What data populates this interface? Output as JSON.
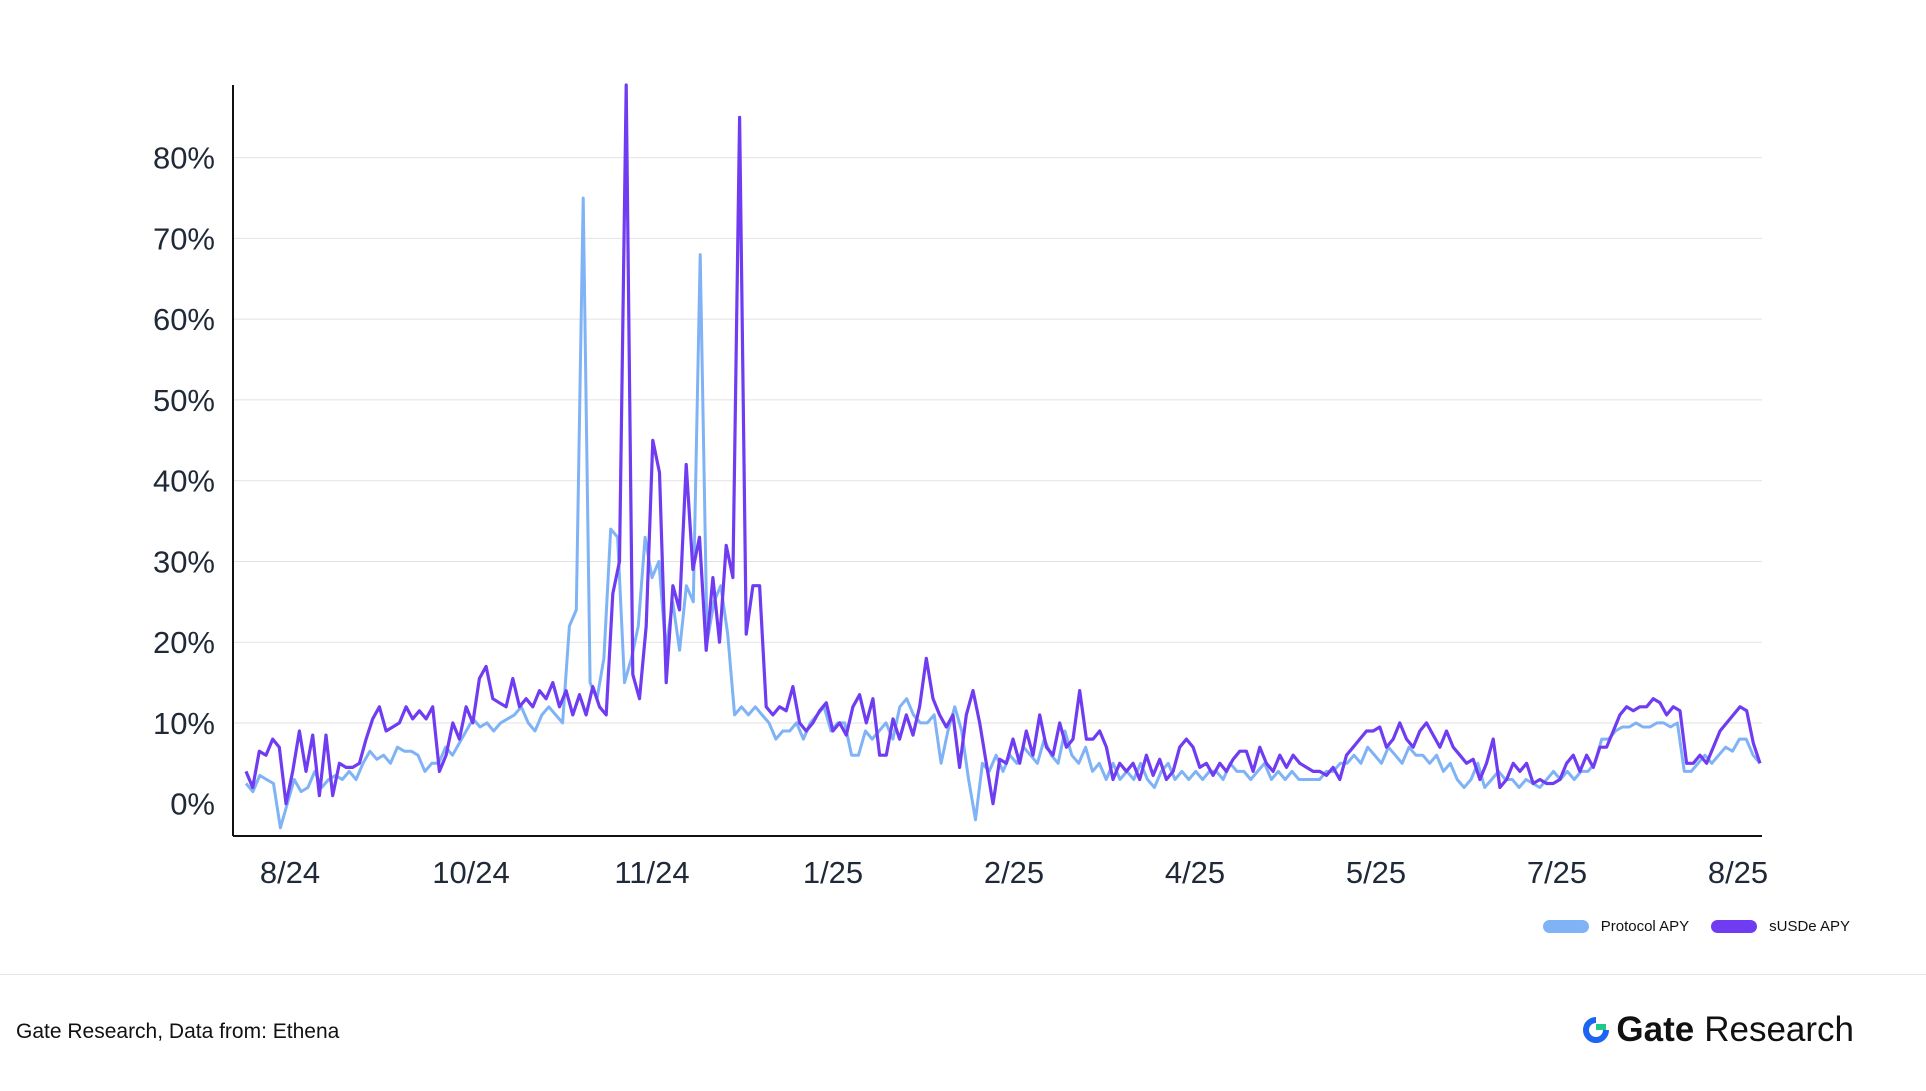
{
  "chart_data": {
    "type": "line",
    "x_tick_labels": [
      "8/24",
      "10/24",
      "11/24",
      "1/25",
      "2/25",
      "4/25",
      "5/25",
      "7/25",
      "8/25"
    ],
    "y_tick_labels": [
      "0%",
      "10%",
      "20%",
      "30%",
      "40%",
      "50%",
      "60%",
      "70%",
      "80%"
    ],
    "ylim": [
      -4,
      89
    ],
    "grid": "horizontal",
    "legend_position": "bottom-right",
    "series": [
      {
        "name": "Protocol APY",
        "color": "#7fb3f5",
        "values": [
          2.5,
          1.5,
          3.5,
          3,
          2.5,
          -3,
          0,
          3,
          1.5,
          2,
          4,
          2,
          3,
          3.5,
          3,
          4,
          3,
          5,
          6.5,
          5.5,
          6,
          5,
          7,
          6.5,
          6.5,
          6,
          4,
          5,
          5,
          7,
          6,
          7.5,
          9,
          10.5,
          9.5,
          10,
          9,
          10,
          10.5,
          11,
          12,
          10,
          9,
          11,
          12,
          11,
          10,
          22,
          24,
          75,
          15,
          13,
          18,
          34,
          33,
          15,
          18,
          22,
          33,
          28,
          30,
          19,
          25,
          19,
          27,
          25,
          68,
          20,
          25,
          27,
          21,
          11,
          12,
          11,
          12,
          11,
          10,
          8,
          9,
          9,
          10,
          8,
          10,
          11,
          12,
          9,
          10,
          10,
          6,
          6,
          9,
          8,
          9,
          10,
          8,
          12,
          13,
          11,
          10,
          10,
          11,
          5,
          9,
          12,
          9,
          3,
          -2,
          5,
          4,
          6,
          4,
          6,
          5,
          7,
          6,
          5,
          8,
          6,
          5,
          9,
          6,
          5,
          7,
          4,
          5,
          3,
          5,
          3,
          4,
          3,
          5,
          3,
          2,
          4,
          5,
          3,
          4,
          3,
          4,
          3,
          4,
          4,
          3,
          5,
          4,
          4,
          3,
          4,
          5,
          3,
          4,
          3,
          4,
          3,
          3,
          3,
          3,
          4,
          4,
          5,
          5,
          6,
          5,
          7,
          6,
          5,
          7,
          6,
          5,
          7,
          6,
          6,
          5,
          6,
          4,
          5,
          3,
          2,
          3,
          5,
          2,
          3,
          4,
          3,
          3,
          2,
          3,
          2.5,
          2,
          3,
          4,
          3,
          4,
          3,
          4,
          4,
          5,
          8,
          8,
          9,
          9.5,
          9.5,
          10,
          9.5,
          9.5,
          10,
          10,
          9.5,
          10,
          4,
          4,
          5,
          6,
          5,
          6,
          7,
          6.5,
          8,
          8,
          6,
          5
        ],
        "label_sequence": []
      },
      {
        "name": "sUSDe APY",
        "color": "#6f3cf2",
        "values": [
          4,
          2,
          6.5,
          6,
          8,
          7,
          0,
          4,
          9,
          4,
          8.5,
          1,
          8.5,
          1,
          5,
          4.5,
          4.5,
          5,
          8,
          10.5,
          12,
          9,
          9.5,
          10,
          12,
          10.5,
          11.5,
          10.5,
          12,
          4,
          6,
          10,
          8,
          12,
          10,
          15.5,
          17,
          13,
          12.5,
          12,
          15.5,
          12,
          13,
          12,
          14,
          13,
          15,
          12,
          14,
          11,
          13.5,
          11,
          14.5,
          12,
          11,
          26,
          30,
          89,
          16,
          13,
          22,
          45,
          41,
          15,
          27,
          24,
          42,
          29,
          33,
          19,
          28,
          20,
          32,
          28,
          85,
          21,
          27,
          27,
          12,
          11,
          12,
          11.5,
          14.5,
          10,
          9,
          10,
          11.5,
          12.5,
          9,
          10,
          8.5,
          12,
          13.5,
          10,
          13,
          6,
          6,
          10.5,
          8,
          11,
          8.5,
          12,
          18,
          13,
          11,
          9.5,
          11,
          4.5,
          11,
          14,
          10,
          5,
          0,
          5.5,
          5,
          8,
          5,
          9,
          6,
          11,
          7,
          6,
          10,
          7,
          8,
          14,
          8,
          8,
          9,
          7,
          3,
          5,
          4,
          5,
          3,
          6,
          3.5,
          5.5,
          3,
          4,
          7,
          8,
          7,
          4.5,
          5,
          3.5,
          5,
          4,
          5.5,
          6.5,
          6.5,
          4,
          7,
          5,
          4,
          6,
          4.5,
          6,
          5,
          4.5,
          4,
          4,
          3.5,
          4.5,
          3,
          6,
          7,
          8,
          9,
          9,
          9.5,
          7,
          8,
          10,
          8,
          7,
          9,
          10,
          8.5,
          7,
          9,
          7,
          6,
          5,
          5.5,
          3,
          5,
          8,
          2,
          3,
          5,
          4,
          5,
          2.5,
          3,
          2.5,
          2.5,
          3,
          5,
          6,
          4,
          6,
          4.5,
          7,
          7,
          9,
          11,
          12,
          11.5,
          12,
          12,
          13,
          12.5,
          11,
          12,
          11.5,
          5,
          5,
          6,
          5,
          7,
          9,
          10,
          11,
          12,
          11.5,
          7.5,
          5
        ],
        "label_sequence": []
      }
    ]
  },
  "footer": {
    "source": "Gate Research, Data from:  Ethena",
    "brand_bold": "Gate",
    "brand_regular": "Research"
  }
}
